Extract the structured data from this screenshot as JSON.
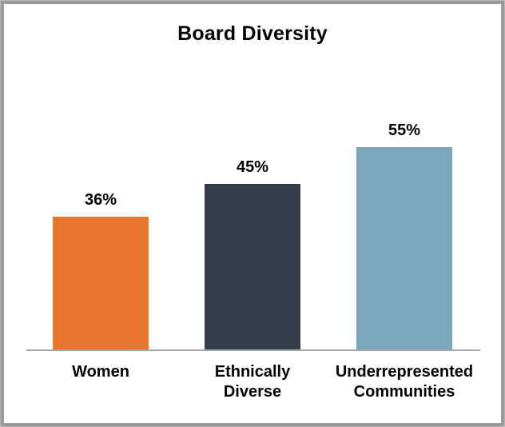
{
  "window": {
    "background": "#ffffff",
    "frame_border_color": "#9a9a9a"
  },
  "chart_data": {
    "type": "bar",
    "title": "Board Diversity",
    "categories": [
      "Women",
      "Ethnically Diverse",
      "Underrepresented Communities"
    ],
    "category_lines": [
      [
        "Women"
      ],
      [
        "Ethnically",
        "Diverse"
      ],
      [
        "Underrepresented",
        "Communities"
      ]
    ],
    "values": [
      36,
      45,
      55
    ],
    "value_labels": [
      "36%",
      "45%",
      "55%"
    ],
    "series": [
      {
        "name": "Board Diversity",
        "values": [
          36,
          45,
          55
        ]
      }
    ],
    "bar_colors": [
      "#e8762c",
      "#333e48",
      "#7ba7bc"
    ],
    "xlabel": "",
    "ylabel": "",
    "ylim": [
      0,
      60
    ],
    "grid": false,
    "legend": "none",
    "y_axis_visible": false,
    "x_axis_line_color": "#a6a6a6",
    "text_color": "#000000"
  }
}
